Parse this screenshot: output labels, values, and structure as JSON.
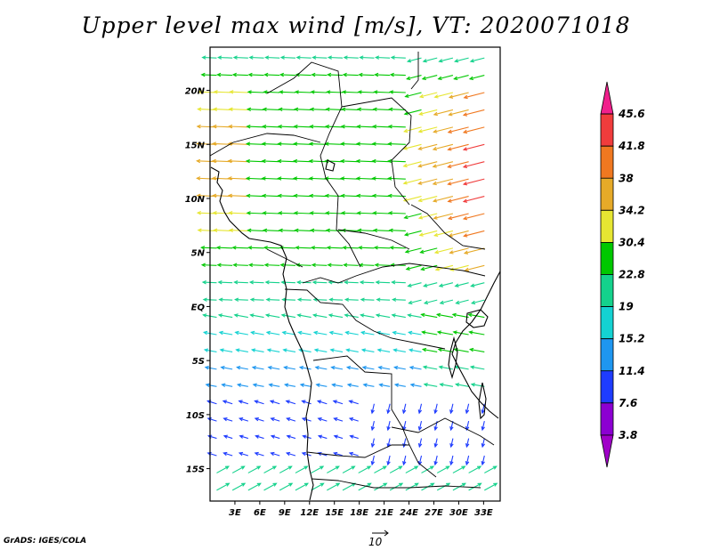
{
  "title": "Upper level max wind [m/s], VT: 2020071018",
  "credit": "GrADS: IGES/COLA",
  "reference_vector": {
    "label": "10",
    "magnitude": 10
  },
  "map": {
    "lon_range": [
      0,
      35
    ],
    "lat_range": [
      -18,
      24
    ],
    "lon_ticks": [
      "3E",
      "6E",
      "9E",
      "12E",
      "15E",
      "18E",
      "21E",
      "24E",
      "27E",
      "30E",
      "33E"
    ],
    "lat_ticks": [
      "20N",
      "15N",
      "10N",
      "5N",
      "EQ",
      "5S",
      "10S",
      "15S"
    ],
    "lat_tick_values": [
      20,
      15,
      10,
      5,
      0,
      -5,
      -10,
      -15
    ]
  },
  "colorbar": {
    "labels": [
      "45.6",
      "41.8",
      "38",
      "34.2",
      "30.4",
      "22.8",
      "19",
      "15.2",
      "11.4",
      "7.6",
      "3.8"
    ],
    "colors": [
      "#f0208c",
      "#f03c3c",
      "#f07820",
      "#e6aa28",
      "#e6e632",
      "#00c800",
      "#14d28c",
      "#14d2d2",
      "#1e96f0",
      "#1e3cff",
      "#8c00d2",
      "#a000c8"
    ]
  },
  "colors": {
    "coast": "#000000",
    "background": "#ffffff"
  }
}
